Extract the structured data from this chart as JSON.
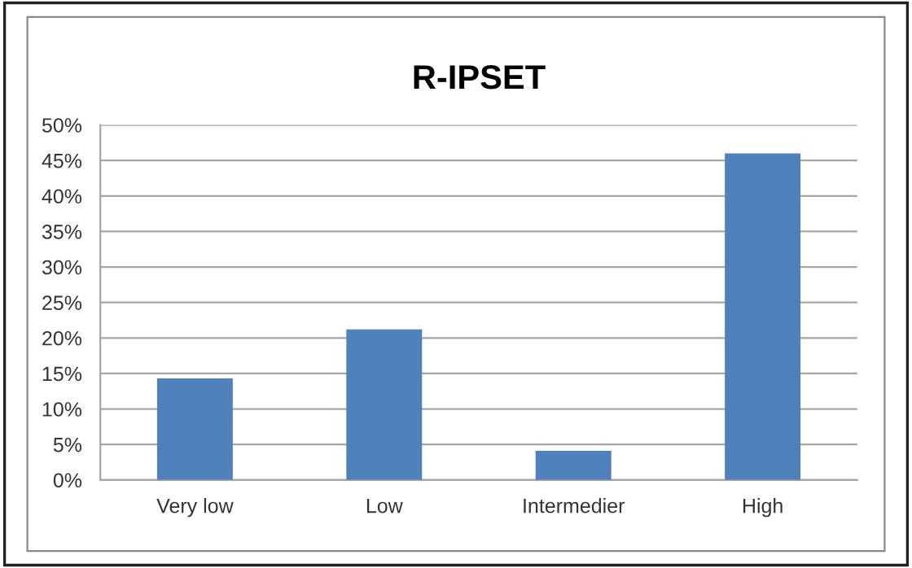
{
  "chart_data": {
    "type": "bar",
    "title": "R-IPSET",
    "categories": [
      "Very low",
      "Low",
      "Intermedier",
      "High"
    ],
    "values": [
      14.3,
      21.2,
      4.1,
      46.0
    ],
    "color": "#4f81bd",
    "ylim": [
      0,
      50
    ],
    "yticks": [
      {
        "value": 0,
        "label": "0%"
      },
      {
        "value": 5,
        "label": "5%"
      },
      {
        "value": 10,
        "label": "10%"
      },
      {
        "value": 15,
        "label": "15%"
      },
      {
        "value": 20,
        "label": "20%"
      },
      {
        "value": 25,
        "label": "25%"
      },
      {
        "value": 30,
        "label": "30%"
      },
      {
        "value": 35,
        "label": "35%"
      },
      {
        "value": 40,
        "label": "40%"
      },
      {
        "value": 45,
        "label": "45%"
      },
      {
        "value": 50,
        "label": "50%"
      }
    ],
    "grid": "y",
    "legend": false
  }
}
